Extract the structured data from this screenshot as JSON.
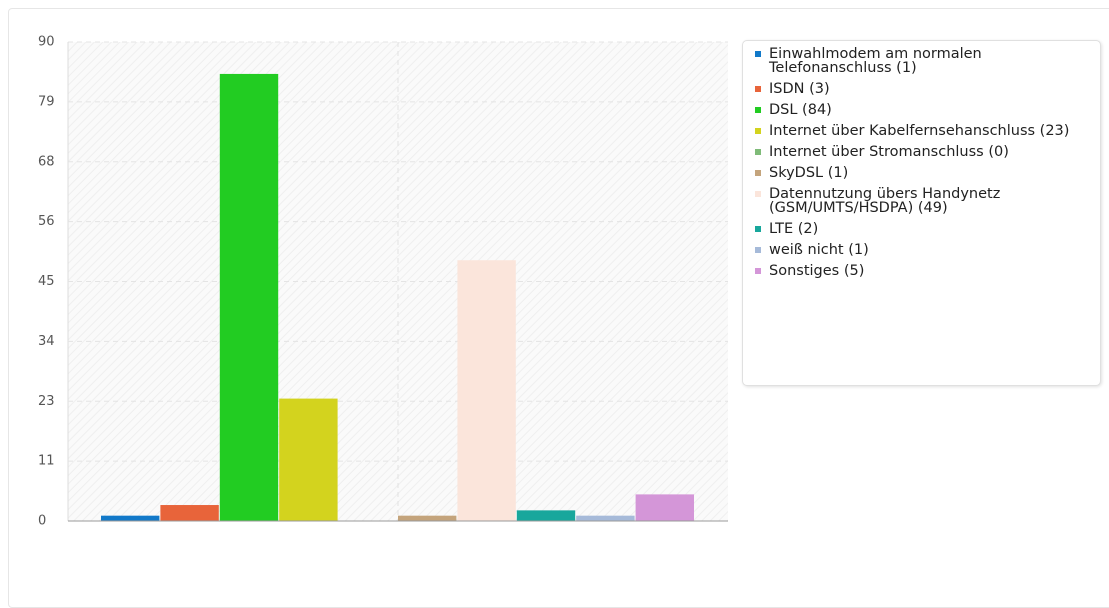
{
  "chart_data": {
    "type": "bar",
    "ylim": [
      0,
      90
    ],
    "yticks": [
      0,
      {
        "value": 11.25,
        "label": "11"
      },
      {
        "value": 22.5,
        "label": "23"
      },
      {
        "value": 33.75,
        "label": "34"
      },
      45,
      {
        "value": 56.25,
        "label": "56"
      },
      {
        "value": 67.5,
        "label": "68"
      },
      {
        "value": 78.75,
        "label": "79"
      },
      90
    ],
    "grid": true,
    "legend": "right",
    "series": [
      {
        "name": "Einwahlmodem am normalen Telefonanschluss (1)",
        "color": "#1279c9",
        "values": [
          1
        ]
      },
      {
        "name": "ISDN (3)",
        "color": "#e8643a",
        "values": [
          3
        ]
      },
      {
        "name": "DSL (84)",
        "color": "#22cc22",
        "values": [
          84
        ]
      },
      {
        "name": "Internet über Kabelfernsehanschluss (23)",
        "color": "#d3d31e",
        "values": [
          23
        ]
      },
      {
        "name": "Internet über Stromanschluss (0)",
        "color": "#7fbb78",
        "values": [
          0
        ]
      },
      {
        "name": "SkyDSL (1)",
        "color": "#c4a47c",
        "values": [
          1
        ]
      },
      {
        "name": "Datennutzung übers Handynetz (GSM/UMTS/HSDPA) (49)",
        "color": "#fbe5db",
        "values": [
          49
        ]
      },
      {
        "name": "LTE (2)",
        "color": "#18a79c",
        "values": [
          2
        ]
      },
      {
        "name": "weiß nicht (1)",
        "color": "#a6bad9",
        "values": [
          1
        ]
      },
      {
        "name": "Sonstiges (5)",
        "color": "#d496d8",
        "values": [
          5
        ]
      }
    ]
  }
}
